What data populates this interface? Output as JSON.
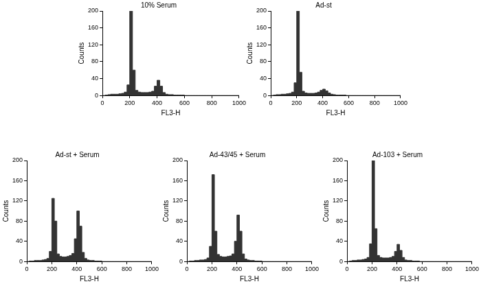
{
  "chart_data": [
    {
      "type": "histogram",
      "title": "10% Serum",
      "x_label": "FL3-H",
      "y_label": "Counts",
      "color": "#333333",
      "grid": false,
      "bins": [
        0,
        20,
        40,
        60,
        80,
        100,
        120,
        140,
        160,
        180,
        200,
        220,
        240,
        260,
        280,
        300,
        320,
        340,
        360,
        380,
        400,
        420,
        440,
        460,
        480,
        500,
        520,
        540,
        560,
        580,
        600,
        620,
        640,
        660,
        680,
        700,
        720,
        740,
        760,
        780,
        800,
        820,
        840,
        860,
        880,
        900,
        920,
        940,
        960,
        980,
        1000
      ],
      "counts": [
        0,
        1,
        2,
        3,
        3,
        3,
        4,
        5,
        8,
        25,
        205,
        60,
        12,
        8,
        7,
        7,
        7,
        8,
        10,
        22,
        36,
        22,
        7,
        3,
        2,
        2,
        1,
        1,
        1,
        1,
        0,
        0,
        0,
        0,
        0,
        0,
        0,
        0,
        0,
        0,
        0,
        0,
        0,
        0,
        0,
        0,
        0,
        0,
        0,
        0
      ],
      "xlim": [
        0,
        1000
      ],
      "xticks": [
        0,
        200,
        400,
        600,
        800,
        1000
      ],
      "ylim": [
        0,
        200
      ],
      "yticks": [
        0,
        40,
        80,
        120,
        160,
        200
      ]
    },
    {
      "type": "histogram",
      "title": "Ad-st",
      "x_label": "FL3-H",
      "y_label": "Counts",
      "color": "#333333",
      "grid": false,
      "bins": [
        0,
        20,
        40,
        60,
        80,
        100,
        120,
        140,
        160,
        180,
        200,
        220,
        240,
        260,
        280,
        300,
        320,
        340,
        360,
        380,
        400,
        420,
        440,
        460,
        480,
        500,
        520,
        540,
        560,
        580,
        600,
        620,
        640,
        660,
        680,
        700,
        720,
        740,
        760,
        780,
        800,
        820,
        840,
        860,
        880,
        900,
        920,
        940,
        960,
        980,
        1000
      ],
      "counts": [
        0,
        1,
        2,
        2,
        3,
        3,
        4,
        5,
        8,
        30,
        205,
        55,
        10,
        6,
        5,
        5,
        5,
        6,
        8,
        12,
        15,
        11,
        6,
        3,
        2,
        1,
        1,
        1,
        1,
        0,
        0,
        0,
        0,
        0,
        0,
        0,
        0,
        0,
        0,
        0,
        0,
        0,
        0,
        0,
        0,
        0,
        0,
        0,
        0,
        0
      ],
      "xlim": [
        0,
        1000
      ],
      "xticks": [
        0,
        200,
        400,
        600,
        800,
        1000
      ],
      "ylim": [
        0,
        200
      ],
      "yticks": [
        0,
        40,
        80,
        120,
        160,
        200
      ]
    },
    {
      "type": "histogram",
      "title": "Ad-st + Serum",
      "x_label": "FL3-H",
      "y_label": "Counts",
      "color": "#333333",
      "grid": false,
      "bins": [
        0,
        20,
        40,
        60,
        80,
        100,
        120,
        140,
        160,
        180,
        200,
        220,
        240,
        260,
        280,
        300,
        320,
        340,
        360,
        380,
        400,
        420,
        440,
        460,
        480,
        500,
        520,
        540,
        560,
        580,
        600,
        620,
        640,
        660,
        680,
        700,
        720,
        740,
        760,
        780,
        800,
        820,
        840,
        860,
        880,
        900,
        920,
        940,
        960,
        980,
        1000
      ],
      "counts": [
        0,
        1,
        1,
        2,
        2,
        2,
        3,
        4,
        6,
        20,
        125,
        80,
        15,
        10,
        9,
        9,
        10,
        12,
        16,
        45,
        100,
        70,
        18,
        6,
        3,
        2,
        2,
        1,
        1,
        1,
        0,
        0,
        0,
        0,
        0,
        0,
        0,
        0,
        0,
        0,
        0,
        0,
        0,
        0,
        0,
        0,
        0,
        0,
        0,
        0
      ],
      "xlim": [
        0,
        1000
      ],
      "xticks": [
        0,
        200,
        400,
        600,
        800,
        1000
      ],
      "ylim": [
        0,
        200
      ],
      "yticks": [
        0,
        40,
        80,
        120,
        160,
        200
      ]
    },
    {
      "type": "histogram",
      "title": "Ad-43/45 + Serum",
      "x_label": "FL3-H",
      "y_label": "Counts",
      "color": "#333333",
      "grid": false,
      "bins": [
        0,
        20,
        40,
        60,
        80,
        100,
        120,
        140,
        160,
        180,
        200,
        220,
        240,
        260,
        280,
        300,
        320,
        340,
        360,
        380,
        400,
        420,
        440,
        460,
        480,
        500,
        520,
        540,
        560,
        580,
        600,
        620,
        640,
        660,
        680,
        700,
        720,
        740,
        760,
        780,
        800,
        820,
        840,
        860,
        880,
        900,
        920,
        940,
        960,
        980,
        1000
      ],
      "counts": [
        0,
        1,
        1,
        2,
        2,
        3,
        3,
        4,
        7,
        30,
        172,
        60,
        14,
        10,
        9,
        9,
        10,
        11,
        15,
        40,
        92,
        60,
        15,
        5,
        3,
        2,
        2,
        1,
        1,
        1,
        0,
        0,
        0,
        0,
        0,
        0,
        0,
        0,
        0,
        0,
        0,
        0,
        0,
        0,
        0,
        0,
        0,
        0,
        0,
        0
      ],
      "xlim": [
        0,
        1000
      ],
      "xticks": [
        0,
        200,
        400,
        600,
        800,
        1000
      ],
      "ylim": [
        0,
        200
      ],
      "yticks": [
        0,
        40,
        80,
        120,
        160,
        200
      ]
    },
    {
      "type": "histogram",
      "title": "Ad-103 + Serum",
      "x_label": "FL3-H",
      "y_label": "Counts",
      "color": "#333333",
      "grid": false,
      "bins": [
        0,
        20,
        40,
        60,
        80,
        100,
        120,
        140,
        160,
        180,
        200,
        220,
        240,
        260,
        280,
        300,
        320,
        340,
        360,
        380,
        400,
        420,
        440,
        460,
        480,
        500,
        520,
        540,
        560,
        580,
        600,
        620,
        640,
        660,
        680,
        700,
        720,
        740,
        760,
        780,
        800,
        820,
        840,
        860,
        880,
        900,
        920,
        940,
        960,
        980,
        1000
      ],
      "counts": [
        0,
        1,
        2,
        2,
        3,
        3,
        4,
        5,
        8,
        35,
        205,
        65,
        12,
        8,
        7,
        7,
        7,
        8,
        10,
        20,
        34,
        22,
        8,
        3,
        2,
        2,
        1,
        1,
        1,
        0,
        0,
        0,
        0,
        0,
        0,
        0,
        0,
        0,
        0,
        0,
        0,
        0,
        0,
        0,
        0,
        0,
        0,
        0,
        0,
        0
      ],
      "xlim": [
        0,
        1000
      ],
      "xticks": [
        0,
        200,
        400,
        600,
        800,
        1000
      ],
      "ylim": [
        0,
        200
      ],
      "yticks": [
        0,
        40,
        80,
        120,
        160,
        200
      ]
    }
  ]
}
